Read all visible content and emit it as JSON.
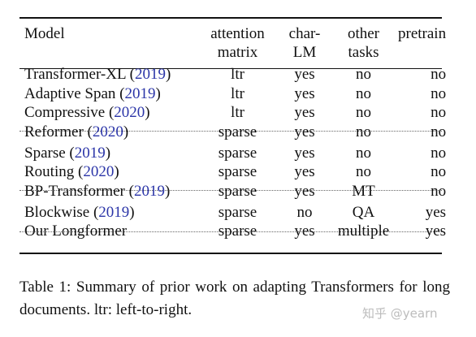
{
  "table": {
    "headers": {
      "model": "Model",
      "attention_1": "attention",
      "attention_2": "matrix",
      "char_lm": "char-LM",
      "other_1": "other",
      "other_2": "tasks",
      "pretrain": "pretrain"
    },
    "rows": [
      {
        "model": "Transformer-XL (",
        "cite": "2019",
        "close": ")",
        "attention": "ltr",
        "char_lm": "yes",
        "other": "no",
        "pretrain": "no"
      },
      {
        "model": "Adaptive Span (",
        "cite": "2019",
        "close": ")",
        "attention": "ltr",
        "char_lm": "yes",
        "other": "no",
        "pretrain": "no"
      },
      {
        "model": "Compressive (",
        "cite": "2020",
        "close": ")",
        "attention": "ltr",
        "char_lm": "yes",
        "other": "no",
        "pretrain": "no"
      },
      {
        "model": "Reformer (",
        "cite": "2020",
        "close": ")",
        "attention": "sparse",
        "char_lm": "yes",
        "other": "no",
        "pretrain": "no"
      },
      {
        "model": "Sparse (",
        "cite": "2019",
        "close": ")",
        "attention": "sparse",
        "char_lm": "yes",
        "other": "no",
        "pretrain": "no"
      },
      {
        "model": "Routing (",
        "cite": "2020",
        "close": ")",
        "attention": "sparse",
        "char_lm": "yes",
        "other": "no",
        "pretrain": "no"
      },
      {
        "model": "BP-Transformer (",
        "cite": "2019",
        "close": ")",
        "attention": "sparse",
        "char_lm": "yes",
        "other": "MT",
        "pretrain": "no"
      },
      {
        "model": "Blockwise (",
        "cite": "2019",
        "close": ")",
        "attention": "sparse",
        "char_lm": "no",
        "other": "QA",
        "pretrain": "yes"
      },
      {
        "model": "Our Longformer",
        "cite": "",
        "close": "",
        "attention": "sparse",
        "char_lm": "yes",
        "other": "multiple",
        "pretrain": "yes"
      }
    ]
  },
  "caption": "Table 1: Summary of prior work on adapting Transformers for long documents. ltr: left-to-right.",
  "watermark": "知乎 @yearn"
}
